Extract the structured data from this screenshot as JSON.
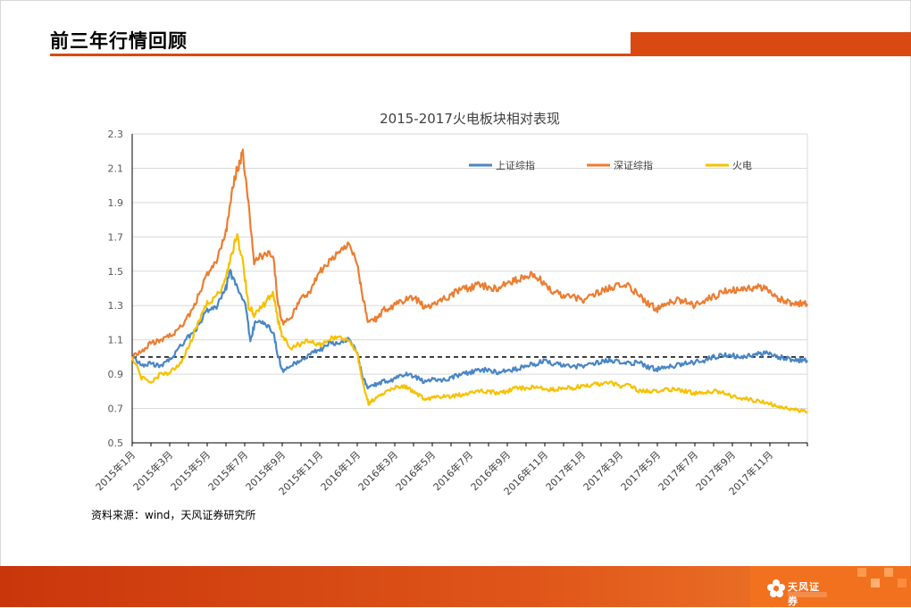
{
  "page": {
    "title": "前三年行情回顾",
    "source": "资料来源：wind，天风证券研究所",
    "logo_text": "天风证券"
  },
  "colors": {
    "accent": "#d94a12",
    "shanghai": "#4a86c5",
    "shenzhen": "#ec7d31",
    "power": "#f7c100",
    "baseline": "#000000"
  },
  "chart_data": {
    "type": "line",
    "title": "2015-2017火电板块相对表现",
    "xlabel": "",
    "ylabel": "",
    "ylim": [
      0.5,
      2.3
    ],
    "yticks": [
      0.5,
      0.7,
      0.9,
      1.1,
      1.3,
      1.5,
      1.7,
      1.9,
      2.1,
      2.3
    ],
    "ytick_labels": [
      "0.5",
      "0.7",
      "0.9",
      "1.1",
      "1.3",
      "1.5",
      "1.7",
      "1.9",
      "2.1",
      "2.3"
    ],
    "xlim": [
      0,
      36
    ],
    "xtick_positions": [
      0,
      2,
      4,
      6,
      8,
      10,
      12,
      14,
      16,
      18,
      20,
      22,
      24,
      26,
      28,
      30,
      32,
      34
    ],
    "xtick_labels": [
      "2015年1月",
      "2015年3月",
      "2015年5月",
      "2015年7月",
      "2015年9月",
      "2015年11月",
      "2016年1月",
      "2016年3月",
      "2016年5月",
      "2016年7月",
      "2016年9月",
      "2016年11月",
      "2017年1月",
      "2017年3月",
      "2017年5月",
      "2017年7月",
      "2017年9月",
      "2017年11月"
    ],
    "reference_line": 1.0,
    "legend_position": "top-right",
    "grid": "horizontal",
    "series": [
      {
        "name": "上证综指",
        "color": "#4a86c5",
        "points": [
          [
            0,
            1.0
          ],
          [
            0.5,
            0.95
          ],
          [
            1,
            0.96
          ],
          [
            1.5,
            0.95
          ],
          [
            2,
            0.99
          ],
          [
            2.5,
            1.05
          ],
          [
            3,
            1.12
          ],
          [
            3.5,
            1.18
          ],
          [
            4,
            1.27
          ],
          [
            4.5,
            1.3
          ],
          [
            5,
            1.4
          ],
          [
            5.2,
            1.5
          ],
          [
            5.5,
            1.42
          ],
          [
            6,
            1.32
          ],
          [
            6.3,
            1.1
          ],
          [
            6.6,
            1.22
          ],
          [
            7,
            1.2
          ],
          [
            7.5,
            1.15
          ],
          [
            7.8,
            1.0
          ],
          [
            8,
            0.92
          ],
          [
            8.5,
            0.95
          ],
          [
            9,
            0.98
          ],
          [
            9.5,
            1.02
          ],
          [
            10,
            1.04
          ],
          [
            10.5,
            1.08
          ],
          [
            11,
            1.07
          ],
          [
            11.5,
            1.1
          ],
          [
            12,
            1.03
          ],
          [
            12.3,
            0.88
          ],
          [
            12.6,
            0.82
          ],
          [
            13,
            0.84
          ],
          [
            13.5,
            0.86
          ],
          [
            14,
            0.87
          ],
          [
            14.5,
            0.9
          ],
          [
            15,
            0.89
          ],
          [
            15.5,
            0.86
          ],
          [
            16,
            0.87
          ],
          [
            16.5,
            0.86
          ],
          [
            17,
            0.88
          ],
          [
            17.5,
            0.9
          ],
          [
            18,
            0.91
          ],
          [
            18.5,
            0.92
          ],
          [
            19,
            0.93
          ],
          [
            19.5,
            0.91
          ],
          [
            20,
            0.92
          ],
          [
            20.5,
            0.93
          ],
          [
            21,
            0.95
          ],
          [
            21.5,
            0.96
          ],
          [
            22,
            0.98
          ],
          [
            22.5,
            0.96
          ],
          [
            23,
            0.95
          ],
          [
            23.5,
            0.94
          ],
          [
            24,
            0.95
          ],
          [
            24.5,
            0.96
          ],
          [
            25,
            0.97
          ],
          [
            25.5,
            0.98
          ],
          [
            26,
            0.97
          ],
          [
            26.5,
            0.96
          ],
          [
            27,
            0.97
          ],
          [
            27.5,
            0.94
          ],
          [
            28,
            0.93
          ],
          [
            28.5,
            0.94
          ],
          [
            29,
            0.95
          ],
          [
            29.5,
            0.96
          ],
          [
            30,
            0.97
          ],
          [
            30.5,
            0.98
          ],
          [
            31,
            1.0
          ],
          [
            31.5,
            1.01
          ],
          [
            32,
            1.01
          ],
          [
            32.5,
            1.0
          ],
          [
            33,
            1.01
          ],
          [
            33.5,
            1.02
          ],
          [
            34,
            1.02
          ],
          [
            34.5,
            1.0
          ],
          [
            35,
            0.99
          ],
          [
            35.5,
            0.98
          ],
          [
            36,
            0.98
          ]
        ]
      },
      {
        "name": "深证综指",
        "color": "#ec7d31",
        "points": [
          [
            0,
            1.0
          ],
          [
            0.5,
            1.03
          ],
          [
            1,
            1.08
          ],
          [
            1.5,
            1.1
          ],
          [
            2,
            1.13
          ],
          [
            2.5,
            1.16
          ],
          [
            3,
            1.24
          ],
          [
            3.5,
            1.35
          ],
          [
            4,
            1.48
          ],
          [
            4.5,
            1.57
          ],
          [
            5,
            1.72
          ],
          [
            5.3,
            1.95
          ],
          [
            5.6,
            2.1
          ],
          [
            5.9,
            2.18
          ],
          [
            6.2,
            1.9
          ],
          [
            6.5,
            1.55
          ],
          [
            7,
            1.6
          ],
          [
            7.5,
            1.6
          ],
          [
            7.8,
            1.3
          ],
          [
            8,
            1.2
          ],
          [
            8.5,
            1.23
          ],
          [
            9,
            1.35
          ],
          [
            9.5,
            1.38
          ],
          [
            10,
            1.5
          ],
          [
            10.5,
            1.55
          ],
          [
            11,
            1.6
          ],
          [
            11.5,
            1.65
          ],
          [
            12,
            1.55
          ],
          [
            12.3,
            1.35
          ],
          [
            12.6,
            1.2
          ],
          [
            13,
            1.22
          ],
          [
            13.5,
            1.28
          ],
          [
            14,
            1.3
          ],
          [
            14.5,
            1.33
          ],
          [
            15,
            1.35
          ],
          [
            15.5,
            1.3
          ],
          [
            16,
            1.3
          ],
          [
            16.5,
            1.33
          ],
          [
            17,
            1.36
          ],
          [
            17.5,
            1.4
          ],
          [
            18,
            1.4
          ],
          [
            18.5,
            1.42
          ],
          [
            19,
            1.41
          ],
          [
            19.5,
            1.4
          ],
          [
            20,
            1.43
          ],
          [
            20.5,
            1.45
          ],
          [
            21,
            1.47
          ],
          [
            21.5,
            1.48
          ],
          [
            22,
            1.42
          ],
          [
            22.5,
            1.38
          ],
          [
            23,
            1.35
          ],
          [
            23.5,
            1.35
          ],
          [
            24,
            1.33
          ],
          [
            24.5,
            1.36
          ],
          [
            25,
            1.38
          ],
          [
            25.5,
            1.4
          ],
          [
            26,
            1.42
          ],
          [
            26.5,
            1.41
          ],
          [
            27,
            1.36
          ],
          [
            27.5,
            1.31
          ],
          [
            28,
            1.28
          ],
          [
            28.5,
            1.31
          ],
          [
            29,
            1.33
          ],
          [
            29.5,
            1.32
          ],
          [
            30,
            1.3
          ],
          [
            30.5,
            1.33
          ],
          [
            31,
            1.35
          ],
          [
            31.5,
            1.38
          ],
          [
            32,
            1.39
          ],
          [
            32.5,
            1.4
          ],
          [
            33,
            1.4
          ],
          [
            33.5,
            1.41
          ],
          [
            34,
            1.38
          ],
          [
            34.5,
            1.34
          ],
          [
            35,
            1.32
          ],
          [
            35.5,
            1.31
          ],
          [
            36,
            1.31
          ]
        ]
      },
      {
        "name": "火电",
        "color": "#f7c100",
        "points": [
          [
            0,
            1.0
          ],
          [
            0.5,
            0.88
          ],
          [
            1,
            0.85
          ],
          [
            1.5,
            0.9
          ],
          [
            2,
            0.91
          ],
          [
            2.5,
            0.95
          ],
          [
            3,
            1.05
          ],
          [
            3.5,
            1.2
          ],
          [
            4,
            1.32
          ],
          [
            4.5,
            1.35
          ],
          [
            5,
            1.45
          ],
          [
            5.3,
            1.6
          ],
          [
            5.6,
            1.7
          ],
          [
            5.9,
            1.55
          ],
          [
            6.2,
            1.3
          ],
          [
            6.5,
            1.25
          ],
          [
            7,
            1.3
          ],
          [
            7.5,
            1.38
          ],
          [
            7.8,
            1.2
          ],
          [
            8,
            1.12
          ],
          [
            8.5,
            1.05
          ],
          [
            9,
            1.08
          ],
          [
            9.5,
            1.1
          ],
          [
            10,
            1.07
          ],
          [
            10.5,
            1.1
          ],
          [
            11,
            1.12
          ],
          [
            11.5,
            1.1
          ],
          [
            12,
            1.02
          ],
          [
            12.3,
            0.85
          ],
          [
            12.6,
            0.73
          ],
          [
            13,
            0.76
          ],
          [
            13.5,
            0.79
          ],
          [
            14,
            0.82
          ],
          [
            14.5,
            0.83
          ],
          [
            15,
            0.8
          ],
          [
            15.5,
            0.76
          ],
          [
            16,
            0.76
          ],
          [
            16.5,
            0.77
          ],
          [
            17,
            0.77
          ],
          [
            17.5,
            0.78
          ],
          [
            18,
            0.79
          ],
          [
            18.5,
            0.8
          ],
          [
            19,
            0.8
          ],
          [
            19.5,
            0.79
          ],
          [
            20,
            0.8
          ],
          [
            20.5,
            0.82
          ],
          [
            21,
            0.82
          ],
          [
            21.5,
            0.83
          ],
          [
            22,
            0.81
          ],
          [
            22.5,
            0.81
          ],
          [
            23,
            0.82
          ],
          [
            23.5,
            0.82
          ],
          [
            24,
            0.83
          ],
          [
            24.5,
            0.84
          ],
          [
            25,
            0.84
          ],
          [
            25.5,
            0.85
          ],
          [
            26,
            0.83
          ],
          [
            26.5,
            0.84
          ],
          [
            27,
            0.8
          ],
          [
            27.5,
            0.8
          ],
          [
            28,
            0.8
          ],
          [
            28.5,
            0.81
          ],
          [
            29,
            0.81
          ],
          [
            29.5,
            0.8
          ],
          [
            30,
            0.79
          ],
          [
            30.5,
            0.79
          ],
          [
            31,
            0.8
          ],
          [
            31.5,
            0.79
          ],
          [
            32,
            0.77
          ],
          [
            32.5,
            0.76
          ],
          [
            33,
            0.75
          ],
          [
            33.5,
            0.74
          ],
          [
            34,
            0.73
          ],
          [
            34.5,
            0.71
          ],
          [
            35,
            0.7
          ],
          [
            35.5,
            0.69
          ],
          [
            36,
            0.68
          ]
        ]
      }
    ]
  }
}
